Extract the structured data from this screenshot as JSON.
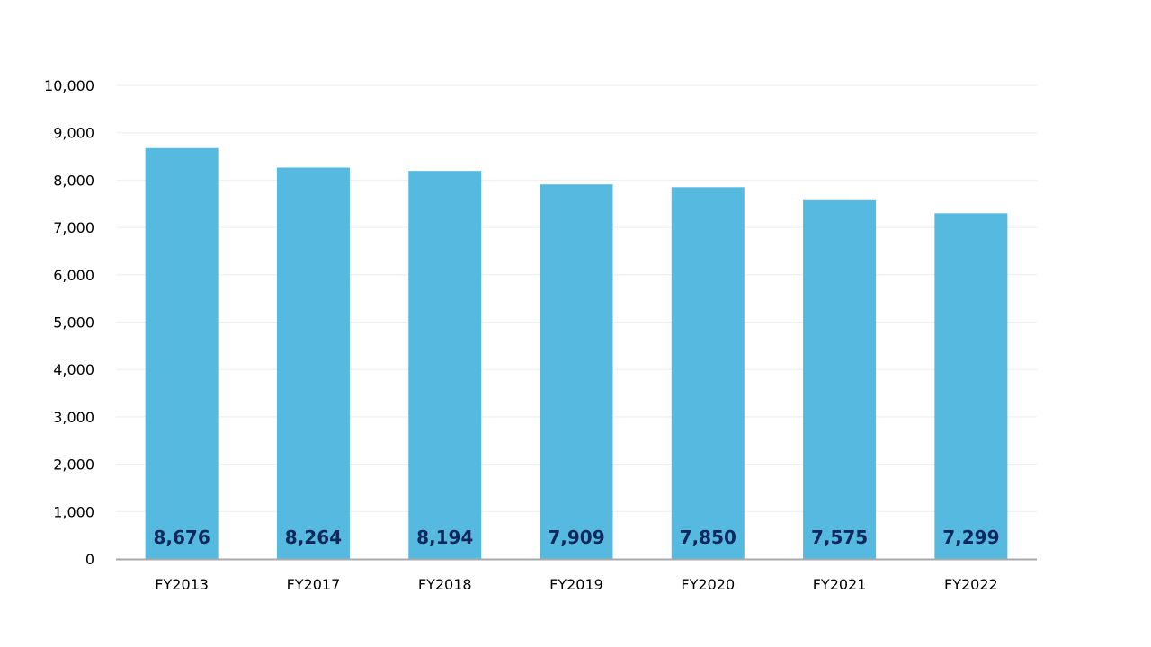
{
  "chart_data": {
    "type": "bar",
    "categories": [
      "FY2013",
      "FY2017",
      "FY2018",
      "FY2019",
      "FY2020",
      "FY2021",
      "FY2022"
    ],
    "values": [
      8676,
      8264,
      8194,
      7909,
      7850,
      7575,
      7299
    ],
    "data_labels": [
      "8,676",
      "8,264",
      "8,194",
      "7,909",
      "7,850",
      "7,575",
      "7,299"
    ],
    "ylim": [
      0,
      10000
    ],
    "yticks": [
      0,
      1000,
      2000,
      3000,
      4000,
      5000,
      6000,
      7000,
      8000,
      9000,
      10000
    ],
    "ytick_labels": [
      "0",
      "1,000",
      "2,000",
      "3,000",
      "4,000",
      "5,000",
      "6,000",
      "7,000",
      "8,000",
      "9,000",
      "10,000"
    ],
    "title": "",
    "xlabel": "",
    "ylabel": "",
    "grid": true,
    "colors": {
      "bar": "#55b9e0",
      "data_label": "#10275e",
      "grid": "#eeeeee",
      "axis": "#aaaaaa"
    }
  }
}
